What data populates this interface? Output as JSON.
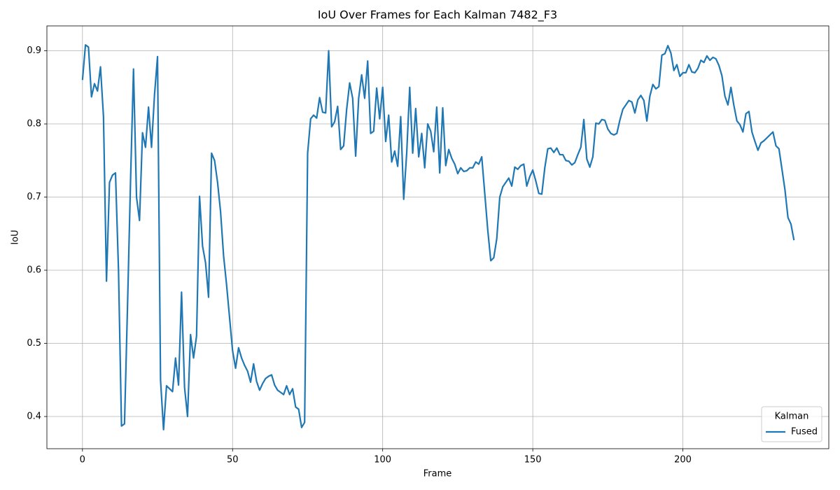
{
  "chart_data": {
    "type": "line",
    "title": "IoU Over Frames for Each Kalman 7482_F3",
    "x_label": "Frame",
    "y_label": "IoU",
    "x": [
      0,
      1,
      2,
      3,
      4,
      5,
      6,
      7,
      8,
      9,
      10,
      11,
      12,
      13,
      14,
      15,
      16,
      17,
      18,
      19,
      20,
      21,
      22,
      23,
      24,
      25,
      26,
      27,
      28,
      29,
      30,
      31,
      32,
      33,
      34,
      35,
      36,
      37,
      38,
      39,
      40,
      41,
      42,
      43,
      44,
      45,
      46,
      47,
      48,
      49,
      50,
      51,
      52,
      53,
      54,
      55,
      56,
      57,
      58,
      59,
      60,
      61,
      62,
      63,
      64,
      65,
      66,
      67,
      68,
      69,
      70,
      71,
      72,
      73,
      74,
      75,
      76,
      77,
      78,
      79,
      80,
      81,
      82,
      83,
      84,
      85,
      86,
      87,
      88,
      89,
      90,
      91,
      92,
      93,
      94,
      95,
      96,
      97,
      98,
      99,
      100,
      101,
      102,
      103,
      104,
      105,
      106,
      107,
      108,
      109,
      110,
      111,
      112,
      113,
      114,
      115,
      116,
      117,
      118,
      119,
      120,
      121,
      122,
      123,
      124,
      125,
      126,
      127,
      128,
      129,
      130,
      131,
      132,
      133,
      134,
      135,
      136,
      137,
      138,
      139,
      140,
      141,
      142,
      143,
      144,
      145,
      146,
      147,
      148,
      149,
      150,
      151,
      152,
      153,
      154,
      155,
      156,
      157,
      158,
      159,
      160,
      161,
      162,
      163,
      164,
      165,
      166,
      167,
      168,
      169,
      170,
      171,
      172,
      173,
      174,
      175,
      176,
      177,
      178,
      179,
      180,
      181,
      182,
      183,
      184,
      185,
      186,
      187,
      188,
      189,
      190,
      191,
      192,
      193,
      194,
      195,
      196,
      197,
      198,
      199,
      200,
      201,
      202,
      203,
      204,
      205,
      206,
      207,
      208,
      209,
      210,
      211,
      212,
      213,
      214,
      215,
      216,
      217,
      218,
      219,
      220,
      221,
      222,
      223,
      224,
      225,
      226,
      227,
      228,
      229,
      230,
      231,
      232,
      233,
      234,
      235,
      236,
      237
    ],
    "series": [
      {
        "name": "Fused",
        "color": "#1f77b4",
        "values": [
          0.86,
          0.908,
          0.905,
          0.837,
          0.855,
          0.845,
          0.878,
          0.81,
          0.585,
          0.72,
          0.73,
          0.733,
          0.6,
          0.387,
          0.39,
          0.55,
          0.72,
          0.875,
          0.7,
          0.668,
          0.788,
          0.768,
          0.823,
          0.768,
          0.84,
          0.892,
          0.45,
          0.382,
          0.442,
          0.438,
          0.434,
          0.48,
          0.443,
          0.57,
          0.44,
          0.4,
          0.512,
          0.48,
          0.51,
          0.701,
          0.633,
          0.61,
          0.563,
          0.76,
          0.75,
          0.72,
          0.68,
          0.62,
          0.58,
          0.535,
          0.49,
          0.466,
          0.494,
          0.48,
          0.47,
          0.462,
          0.447,
          0.472,
          0.448,
          0.436,
          0.445,
          0.452,
          0.455,
          0.457,
          0.443,
          0.436,
          0.433,
          0.43,
          0.442,
          0.43,
          0.438,
          0.413,
          0.41,
          0.385,
          0.392,
          0.76,
          0.807,
          0.812,
          0.808,
          0.836,
          0.816,
          0.815,
          0.9,
          0.796,
          0.803,
          0.824,
          0.765,
          0.77,
          0.82,
          0.856,
          0.835,
          0.756,
          0.835,
          0.867,
          0.835,
          0.886,
          0.787,
          0.79,
          0.849,
          0.807,
          0.85,
          0.776,
          0.812,
          0.748,
          0.763,
          0.742,
          0.81,
          0.697,
          0.76,
          0.85,
          0.76,
          0.821,
          0.755,
          0.787,
          0.74,
          0.8,
          0.79,
          0.762,
          0.823,
          0.733,
          0.822,
          0.743,
          0.765,
          0.753,
          0.745,
          0.732,
          0.74,
          0.735,
          0.736,
          0.74,
          0.74,
          0.748,
          0.745,
          0.755,
          0.705,
          0.655,
          0.613,
          0.617,
          0.643,
          0.7,
          0.714,
          0.72,
          0.726,
          0.715,
          0.741,
          0.738,
          0.743,
          0.745,
          0.715,
          0.728,
          0.737,
          0.722,
          0.705,
          0.704,
          0.74,
          0.766,
          0.767,
          0.761,
          0.767,
          0.758,
          0.758,
          0.75,
          0.749,
          0.744,
          0.747,
          0.758,
          0.768,
          0.806,
          0.752,
          0.741,
          0.755,
          0.801,
          0.8,
          0.806,
          0.805,
          0.793,
          0.787,
          0.785,
          0.787,
          0.805,
          0.82,
          0.826,
          0.832,
          0.83,
          0.815,
          0.833,
          0.839,
          0.832,
          0.804,
          0.838,
          0.854,
          0.848,
          0.851,
          0.894,
          0.896,
          0.907,
          0.897,
          0.873,
          0.881,
          0.865,
          0.87,
          0.87,
          0.881,
          0.871,
          0.87,
          0.876,
          0.887,
          0.884,
          0.893,
          0.887,
          0.891,
          0.889,
          0.88,
          0.866,
          0.838,
          0.826,
          0.85,
          0.825,
          0.804,
          0.799,
          0.789,
          0.814,
          0.817,
          0.789,
          0.776,
          0.764,
          0.774,
          0.777,
          0.781,
          0.785,
          0.789,
          0.77,
          0.766,
          0.738,
          0.71,
          0.672,
          0.663,
          0.641
        ]
      }
    ],
    "xlim": [
      -11.85,
      248.6
    ],
    "ylim": [
      0.356,
      0.934
    ],
    "xticks": [
      0,
      50,
      100,
      150,
      200
    ],
    "yticks": [
      0.4,
      0.5,
      0.6,
      0.7,
      0.8,
      0.9
    ],
    "grid": true,
    "legend_title": "Kalman",
    "legend_loc": "lower right"
  }
}
